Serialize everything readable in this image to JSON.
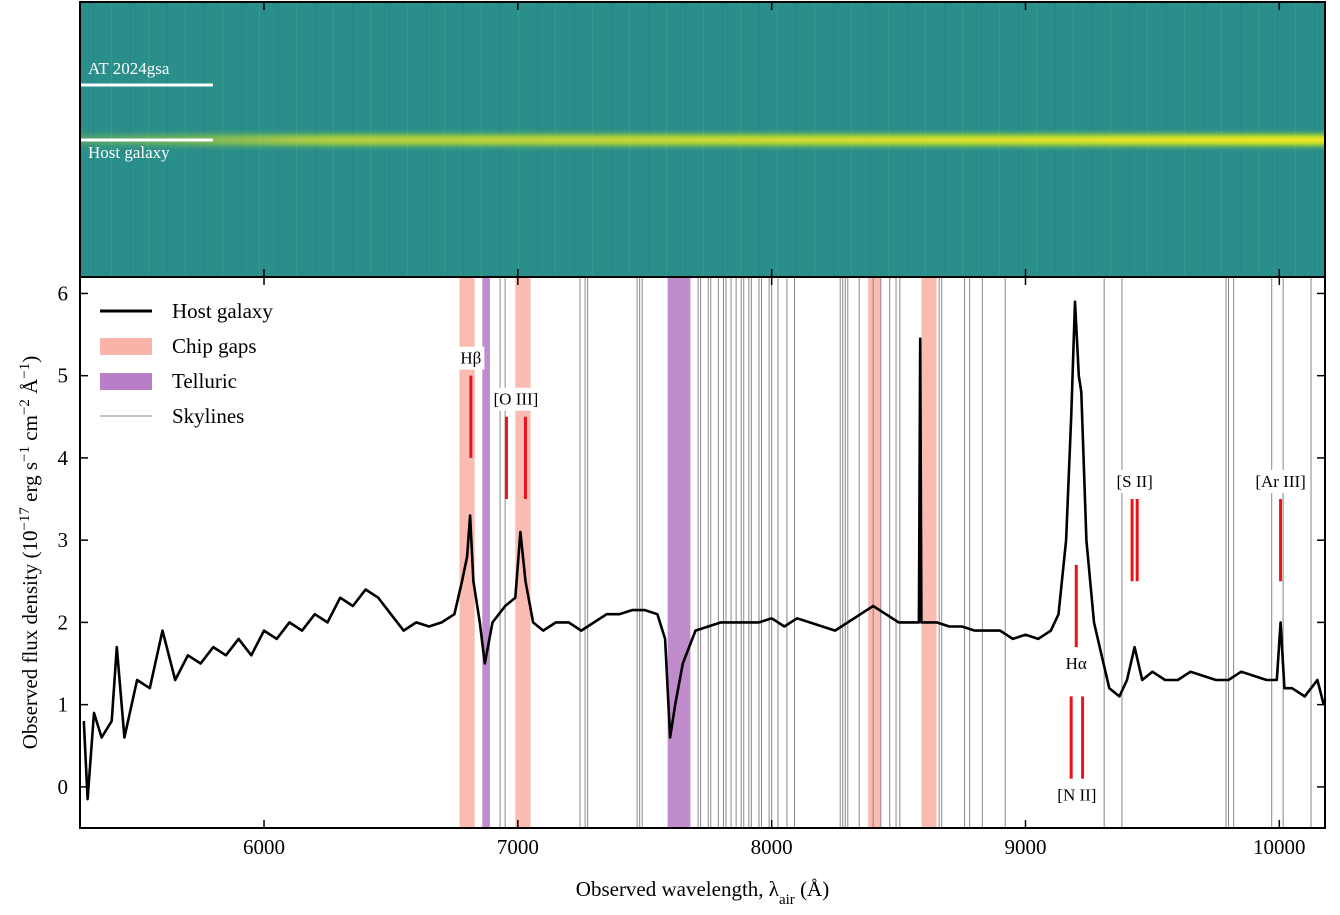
{
  "chart_data": {
    "type": "line",
    "image_labels": [
      "AT 2024gsa",
      "Host galaxy"
    ],
    "xlabel": [
      "Observed wavelength, λ",
      "air",
      " (Å)"
    ],
    "ylabel": [
      "Observed flux density (10",
      "−17",
      " erg s",
      "−1",
      " cm",
      "−2",
      " Å",
      "−1",
      ")"
    ],
    "xlim": [
      5275,
      10180
    ],
    "ylim": [
      -0.5,
      6.2
    ],
    "xticks": [
      6000,
      7000,
      8000,
      9000,
      10000
    ],
    "yticks": [
      0,
      1,
      2,
      3,
      4,
      5,
      6
    ],
    "series": [
      {
        "name": "Host galaxy",
        "color": "#000000",
        "x": [
          5290,
          5305,
          5330,
          5360,
          5400,
          5420,
          5450,
          5500,
          5550,
          5600,
          5650,
          5700,
          5750,
          5800,
          5850,
          5900,
          5950,
          6000,
          6050,
          6100,
          6150,
          6200,
          6250,
          6300,
          6350,
          6400,
          6450,
          6500,
          6550,
          6600,
          6650,
          6700,
          6750,
          6780,
          6800,
          6812,
          6825,
          6850,
          6870,
          6900,
          6950,
          6990,
          7010,
          7030,
          7060,
          7100,
          7150,
          7200,
          7250,
          7300,
          7350,
          7400,
          7450,
          7500,
          7550,
          7580,
          7600,
          7620,
          7650,
          7700,
          7750,
          7800,
          7850,
          7900,
          7950,
          8000,
          8050,
          8100,
          8150,
          8200,
          8250,
          8300,
          8350,
          8400,
          8450,
          8500,
          8550,
          8580,
          8585,
          8590,
          8620,
          8650,
          8700,
          8750,
          8800,
          8850,
          8900,
          8950,
          9000,
          9050,
          9100,
          9130,
          9160,
          9180,
          9195,
          9210,
          9220,
          9240,
          9270,
          9300,
          9330,
          9370,
          9400,
          9430,
          9460,
          9500,
          9550,
          9600,
          9650,
          9700,
          9750,
          9800,
          9850,
          9900,
          9950,
          9990,
          10005,
          10020,
          10050,
          10100,
          10150,
          10175
        ],
        "values": [
          0.8,
          -0.15,
          0.9,
          0.6,
          0.8,
          1.7,
          0.6,
          1.3,
          1.2,
          1.9,
          1.3,
          1.6,
          1.5,
          1.7,
          1.6,
          1.8,
          1.6,
          1.9,
          1.8,
          2.0,
          1.9,
          2.1,
          2.0,
          2.3,
          2.2,
          2.4,
          2.3,
          2.1,
          1.9,
          2.0,
          1.95,
          2.0,
          2.1,
          2.5,
          2.8,
          3.3,
          2.5,
          2.0,
          1.5,
          2.0,
          2.2,
          2.3,
          3.1,
          2.5,
          2.0,
          1.9,
          2.0,
          2.0,
          1.9,
          2.0,
          2.1,
          2.1,
          2.15,
          2.15,
          2.1,
          1.8,
          0.6,
          1.0,
          1.5,
          1.9,
          1.95,
          2.0,
          2.0,
          2.0,
          2.0,
          2.05,
          1.95,
          2.05,
          2.0,
          1.95,
          1.9,
          2.0,
          2.1,
          2.2,
          2.1,
          2.0,
          2.0,
          2.0,
          5.45,
          2.0,
          2.0,
          2.0,
          1.95,
          1.95,
          1.9,
          1.9,
          1.9,
          1.8,
          1.85,
          1.8,
          1.9,
          2.1,
          3.0,
          4.5,
          5.9,
          5.0,
          4.8,
          3.0,
          2.0,
          1.6,
          1.2,
          1.1,
          1.3,
          1.7,
          1.3,
          1.4,
          1.3,
          1.3,
          1.4,
          1.35,
          1.3,
          1.3,
          1.4,
          1.35,
          1.3,
          1.3,
          2.0,
          1.2,
          1.2,
          1.1,
          1.3,
          1.0
        ]
      }
    ],
    "bands": [
      {
        "name": "Chip gaps",
        "color": "#f9b4aa",
        "ranges": [
          [
            6770,
            6830
          ],
          [
            6990,
            7050
          ],
          [
            8380,
            8430
          ],
          [
            8590,
            8650
          ]
        ]
      },
      {
        "name": "Telluric",
        "color": "#b97fc6",
        "ranges": [
          [
            6860,
            6890
          ],
          [
            7590,
            7680
          ]
        ]
      }
    ],
    "skylines": {
      "name": "Skylines",
      "color": "#888888",
      "x": [
        6930,
        6950,
        7245,
        7265,
        7275,
        7470,
        7480,
        7490,
        7710,
        7720,
        7750,
        7760,
        7790,
        7810,
        7820,
        7840,
        7860,
        7880,
        7890,
        7910,
        7920,
        7950,
        7960,
        7990,
        8000,
        8025,
        8060,
        8090,
        8270,
        8280,
        8290,
        8300,
        8345,
        8400,
        8430,
        8465,
        8490,
        8505,
        8660,
        8670,
        8760,
        8780,
        8830,
        8920,
        9310,
        9380,
        9790,
        9800,
        9820,
        9970,
        10015,
        10125
      ]
    },
    "emission_lines": [
      {
        "label": "Hβ",
        "x": [
          6815
        ],
        "y": [
          4.0,
          5.0
        ],
        "label_position": "top"
      },
      {
        "label": "[O III]",
        "x": [
          6955,
          7030
        ],
        "y": [
          3.5,
          4.5
        ],
        "label_position": "top"
      },
      {
        "label": "Hα",
        "x": [
          9200
        ],
        "y": [
          1.7,
          2.7
        ],
        "label_position": "bottom"
      },
      {
        "label": "[N II]",
        "x": [
          9180,
          9225
        ],
        "y": [
          0.1,
          1.1
        ],
        "label_position": "bottom"
      },
      {
        "label": "[S II]",
        "x": [
          9420,
          9440
        ],
        "y": [
          2.5,
          3.5
        ],
        "label_position": "top"
      },
      {
        "label": "[Ar III]",
        "x": [
          10005
        ],
        "y": [
          2.5,
          3.5
        ],
        "label_position": "top"
      }
    ],
    "line_marker_color": "#e8141a"
  }
}
